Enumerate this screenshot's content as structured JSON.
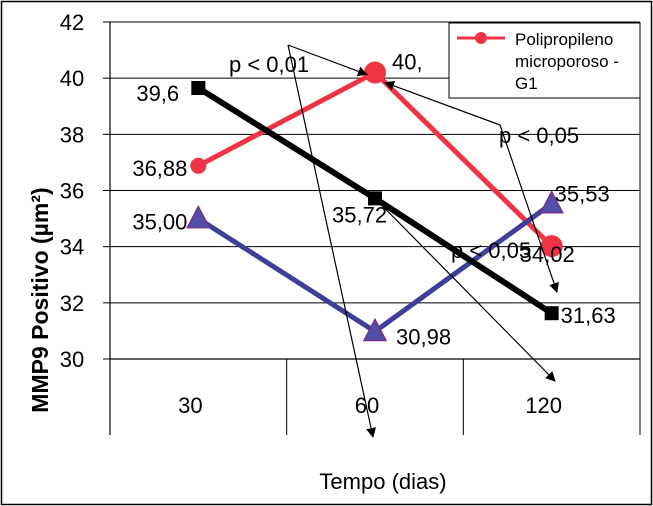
{
  "chart_data": {
    "type": "line",
    "title": "",
    "xlabel": "Tempo (dias)",
    "ylabel": "MMP9 Positivo (µm²)",
    "categories": [
      "30",
      "60",
      "120"
    ],
    "ylim": [
      30,
      42
    ],
    "yticks": [
      "30",
      "32",
      "34",
      "36",
      "38",
      "40",
      "42"
    ],
    "grid": true,
    "legend_position": "top-right",
    "series": [
      {
        "name": "Polipropileno microporoso - G1",
        "color": "#ee3344",
        "marker": "circle",
        "values": [
          36.88,
          40.2,
          34.02
        ],
        "labels": [
          "36,88",
          "40,",
          "34,02"
        ]
      },
      {
        "name": "",
        "color": "#3f3f9a",
        "marker": "triangle",
        "values": [
          35.0,
          30.98,
          35.53
        ],
        "labels": [
          "35,00",
          "30,98",
          "35,53"
        ]
      },
      {
        "name": "",
        "color": "#000000",
        "marker": "square",
        "values": [
          39.65,
          35.72,
          31.63
        ],
        "labels": [
          "39,6",
          "35,72",
          "31,63"
        ]
      }
    ],
    "annotations": [
      {
        "text": "p <  0,01"
      },
      {
        "text": "p < 0,05"
      },
      {
        "text": "p < 0,05"
      }
    ],
    "legend_lines": [
      "Polipropileno",
      "microporoso -",
      "G1"
    ]
  }
}
